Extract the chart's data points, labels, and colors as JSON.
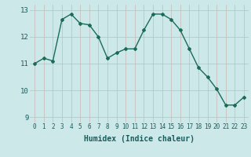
{
  "x": [
    0,
    1,
    2,
    3,
    4,
    5,
    6,
    7,
    8,
    9,
    10,
    11,
    12,
    13,
    14,
    15,
    16,
    17,
    18,
    19,
    20,
    21,
    22,
    23
  ],
  "y": [
    11.0,
    11.2,
    11.1,
    12.65,
    12.85,
    12.5,
    12.45,
    12.0,
    11.2,
    11.4,
    11.55,
    11.55,
    12.25,
    12.85,
    12.85,
    12.65,
    12.25,
    11.55,
    10.85,
    10.5,
    10.05,
    9.45,
    9.45,
    9.75
  ],
  "xlabel": "Humidex (Indice chaleur)",
  "ylim": [
    8.8,
    13.2
  ],
  "xlim": [
    -0.5,
    23.5
  ],
  "yticks": [
    9,
    10,
    11,
    12,
    13
  ],
  "line_color": "#1a6b5a",
  "bg_color": "#cce8e8",
  "grid_color": "#c8b8b8",
  "marker": "D",
  "marker_size": 2.0,
  "linewidth": 1.0
}
